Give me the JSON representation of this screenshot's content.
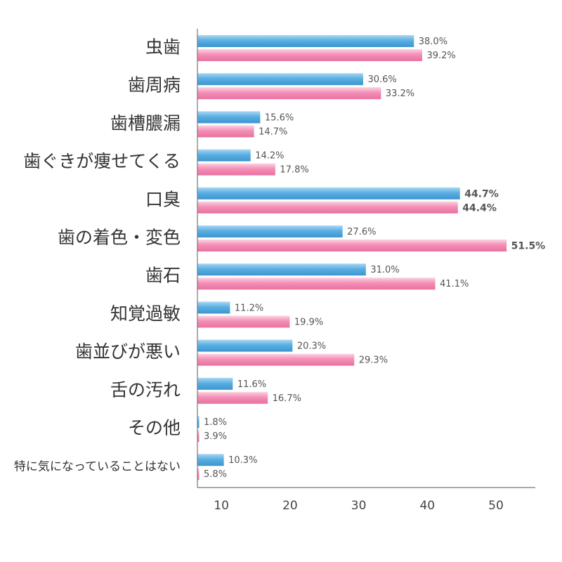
{
  "chart_data": {
    "type": "bar",
    "orientation": "horizontal",
    "title": "",
    "xlabel": "",
    "ylabel": "",
    "xlim": [
      6.5,
      55
    ],
    "x_ticks": [
      10,
      20,
      30,
      40,
      50
    ],
    "grid": false,
    "highlight_color": "#d6186f",
    "categories": [
      "虫歯",
      "歯周病",
      "歯槽膿漏",
      "歯ぐきが痩せてくる",
      "口臭",
      "歯の着色・変色",
      "歯石",
      "知覚過敏",
      "歯並びが悪い",
      "舌の汚れ",
      "その他",
      "特に気になっていることはない"
    ],
    "series": [
      {
        "name": "blue",
        "color": "#5aafe2",
        "values": [
          38.0,
          30.6,
          15.6,
          14.2,
          44.7,
          27.6,
          31.0,
          11.2,
          20.3,
          11.6,
          1.8,
          10.3
        ],
        "labels": [
          "38.0%",
          "30.6%",
          "15.6%",
          "14.2%",
          "44.7%",
          "27.6%",
          "31.0%",
          "11.2%",
          "20.3%",
          "11.6%",
          "1.8%",
          "10.3%"
        ],
        "highlight": [
          false,
          false,
          false,
          false,
          true,
          false,
          false,
          false,
          false,
          false,
          false,
          false
        ]
      },
      {
        "name": "pink",
        "color": "#f48fb6",
        "values": [
          39.2,
          33.2,
          14.7,
          17.8,
          44.4,
          51.5,
          41.1,
          19.9,
          29.3,
          16.7,
          3.9,
          5.8
        ],
        "labels": [
          "39.2%",
          "33.2%",
          "14.7%",
          "17.8%",
          "44.4%",
          "51.5%",
          "41.1%",
          "19.9%",
          "29.3%",
          "16.7%",
          "3.9%",
          "5.8%"
        ],
        "highlight": [
          false,
          false,
          false,
          false,
          true,
          true,
          false,
          false,
          false,
          false,
          false,
          false
        ]
      }
    ]
  }
}
